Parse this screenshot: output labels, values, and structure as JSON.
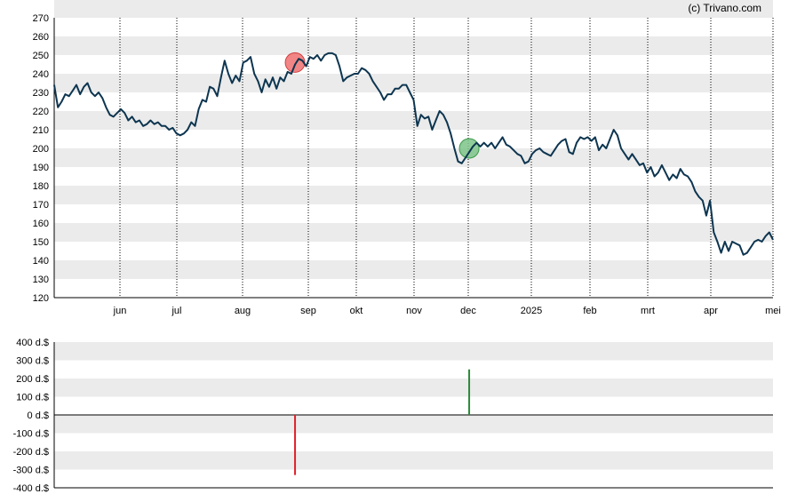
{
  "credit": "(c) Trivano.com",
  "colors": {
    "band": "#ebebeb",
    "line": "#0d3550",
    "sell_marker": "#f07070",
    "buy_marker": "#7cc48a",
    "sell_bar": "#e0202a",
    "buy_bar": "#2a8a3a",
    "axis": "#000000"
  },
  "chart_data": [
    {
      "type": "line",
      "ylim": [
        120,
        270
      ],
      "yticks": [
        "120",
        "130",
        "140",
        "150",
        "160",
        "170",
        "180",
        "190",
        "200",
        "210",
        "220",
        "230",
        "240",
        "250",
        "260",
        "270"
      ],
      "xticks": [
        "jun",
        "jul",
        "aug",
        "sep",
        "okt",
        "nov",
        "dec",
        "2025",
        "feb",
        "mrt",
        "apr",
        "mei"
      ],
      "grid": "vertical dotted at month starts, horizontal alternating bands",
      "series": [
        {
          "points": [
            [
              0,
              234
            ],
            [
              1,
              222
            ],
            [
              2,
              225
            ],
            [
              3,
              229
            ],
            [
              4,
              228
            ],
            [
              5,
              231
            ],
            [
              6,
              234
            ],
            [
              7,
              229
            ],
            [
              8,
              233
            ],
            [
              9,
              235
            ],
            [
              10,
              230
            ],
            [
              11,
              228
            ],
            [
              12,
              230
            ],
            [
              13,
              227
            ],
            [
              14,
              222
            ],
            [
              15,
              218
            ],
            [
              16,
              217
            ],
            [
              17,
              219
            ],
            [
              18,
              221
            ],
            [
              19,
              219
            ],
            [
              20,
              215
            ],
            [
              21,
              217
            ],
            [
              22,
              214
            ],
            [
              23,
              215
            ],
            [
              24,
              212
            ],
            [
              25,
              213
            ],
            [
              26,
              215
            ],
            [
              27,
              213
            ],
            [
              28,
              214
            ],
            [
              29,
              212
            ],
            [
              30,
              212
            ],
            [
              31,
              210
            ],
            [
              32,
              211
            ],
            [
              33,
              208
            ],
            [
              34,
              207
            ],
            [
              35,
              208
            ],
            [
              36,
              210
            ],
            [
              37,
              214
            ],
            [
              38,
              212
            ],
            [
              39,
              221
            ],
            [
              40,
              226
            ],
            [
              41,
              225
            ],
            [
              42,
              233
            ],
            [
              43,
              232
            ],
            [
              44,
              228
            ],
            [
              45,
              238
            ],
            [
              46,
              247
            ],
            [
              47,
              240
            ],
            [
              48,
              235
            ],
            [
              49,
              239
            ],
            [
              50,
              236
            ],
            [
              51,
              246
            ],
            [
              52,
              247
            ],
            [
              53,
              249
            ],
            [
              54,
              240
            ],
            [
              55,
              236
            ],
            [
              56,
              230
            ],
            [
              57,
              237
            ],
            [
              58,
              233
            ],
            [
              59,
              238
            ],
            [
              60,
              232
            ],
            [
              61,
              238
            ],
            [
              62,
              236
            ],
            [
              63,
              241
            ],
            [
              64,
              240
            ],
            [
              65,
              245
            ],
            [
              66,
              248
            ],
            [
              67,
              247
            ],
            [
              68,
              244
            ],
            [
              69,
              249
            ],
            [
              70,
              248
            ],
            [
              71,
              250
            ],
            [
              72,
              247
            ],
            [
              73,
              250
            ],
            [
              74,
              251
            ],
            [
              75,
              251
            ],
            [
              76,
              250
            ],
            [
              77,
              244
            ],
            [
              78,
              236
            ],
            [
              79,
              238
            ],
            [
              80,
              239
            ],
            [
              81,
              240
            ],
            [
              82,
              240
            ],
            [
              83,
              243
            ],
            [
              84,
              242
            ],
            [
              85,
              240
            ],
            [
              86,
              236
            ],
            [
              87,
              233
            ],
            [
              88,
              230
            ],
            [
              89,
              226
            ],
            [
              90,
              229
            ],
            [
              91,
              229
            ],
            [
              92,
              232
            ],
            [
              93,
              232
            ],
            [
              94,
              234
            ],
            [
              95,
              234
            ],
            [
              96,
              230
            ],
            [
              97,
              226
            ],
            [
              98,
              212
            ],
            [
              99,
              218
            ],
            [
              100,
              216
            ],
            [
              101,
              217
            ],
            [
              102,
              210
            ],
            [
              103,
              215
            ],
            [
              104,
              220
            ],
            [
              105,
              218
            ],
            [
              106,
              214
            ],
            [
              107,
              208
            ],
            [
              108,
              200
            ],
            [
              109,
              193
            ],
            [
              110,
              192
            ],
            [
              111,
              195
            ],
            [
              112,
              198
            ],
            [
              113,
              201
            ],
            [
              114,
              203
            ],
            [
              115,
              201
            ],
            [
              116,
              203
            ],
            [
              117,
              201
            ],
            [
              118,
              203
            ],
            [
              119,
              200
            ],
            [
              120,
              203
            ],
            [
              121,
              206
            ],
            [
              122,
              202
            ],
            [
              123,
              201
            ],
            [
              124,
              199
            ],
            [
              125,
              197
            ],
            [
              126,
              196
            ],
            [
              127,
              192
            ],
            [
              128,
              193
            ],
            [
              129,
              197
            ],
            [
              130,
              199
            ],
            [
              131,
              200
            ],
            [
              132,
              198
            ],
            [
              133,
              197
            ],
            [
              134,
              196
            ],
            [
              135,
              199
            ],
            [
              136,
              202
            ],
            [
              137,
              204
            ],
            [
              138,
              205
            ],
            [
              139,
              198
            ],
            [
              140,
              197
            ],
            [
              141,
              203
            ],
            [
              142,
              206
            ],
            [
              143,
              205
            ],
            [
              144,
              206
            ],
            [
              145,
              204
            ],
            [
              146,
              206
            ],
            [
              147,
              199
            ],
            [
              148,
              202
            ],
            [
              149,
              200
            ],
            [
              150,
              205
            ],
            [
              151,
              210
            ],
            [
              152,
              207
            ],
            [
              153,
              200
            ],
            [
              154,
              197
            ],
            [
              155,
              194
            ],
            [
              156,
              197
            ],
            [
              157,
              194
            ],
            [
              158,
              191
            ],
            [
              159,
              192
            ],
            [
              160,
              187
            ],
            [
              161,
              190
            ],
            [
              162,
              185
            ],
            [
              163,
              187
            ],
            [
              164,
              191
            ],
            [
              165,
              187
            ],
            [
              166,
              183
            ],
            [
              167,
              186
            ],
            [
              168,
              184
            ],
            [
              169,
              189
            ],
            [
              170,
              186
            ],
            [
              171,
              185
            ],
            [
              172,
              182
            ],
            [
              173,
              177
            ],
            [
              174,
              174
            ],
            [
              175,
              172
            ],
            [
              176,
              164
            ],
            [
              177,
              172
            ],
            [
              178,
              155
            ],
            [
              179,
              150
            ],
            [
              180,
              144
            ],
            [
              181,
              150
            ],
            [
              182,
              145
            ],
            [
              183,
              150
            ],
            [
              184,
              149
            ],
            [
              185,
              148
            ],
            [
              186,
              143
            ],
            [
              187,
              144
            ],
            [
              188,
              147
            ],
            [
              189,
              150
            ],
            [
              190,
              151
            ],
            [
              191,
              150
            ],
            [
              192,
              153
            ],
            [
              193,
              155
            ],
            [
              194,
              151
            ]
          ]
        }
      ],
      "markers": [
        {
          "type": "sell",
          "x": 65,
          "y": 246
        },
        {
          "type": "buy",
          "x": 112,
          "y": 200
        }
      ]
    },
    {
      "type": "bar",
      "ylim": [
        -400,
        400
      ],
      "yticks": [
        "-400 d.$",
        "-300 d.$",
        "-200 d.$",
        "-100 d.$",
        "0 d.$",
        "100 d.$",
        "200 d.$",
        "300 d.$",
        "400 d.$"
      ],
      "grid": "horizontal alternating bands",
      "series": [
        {
          "points": [
            {
              "x": 65,
              "value": -330
            },
            {
              "x": 112,
              "value": 250
            }
          ]
        }
      ]
    }
  ]
}
